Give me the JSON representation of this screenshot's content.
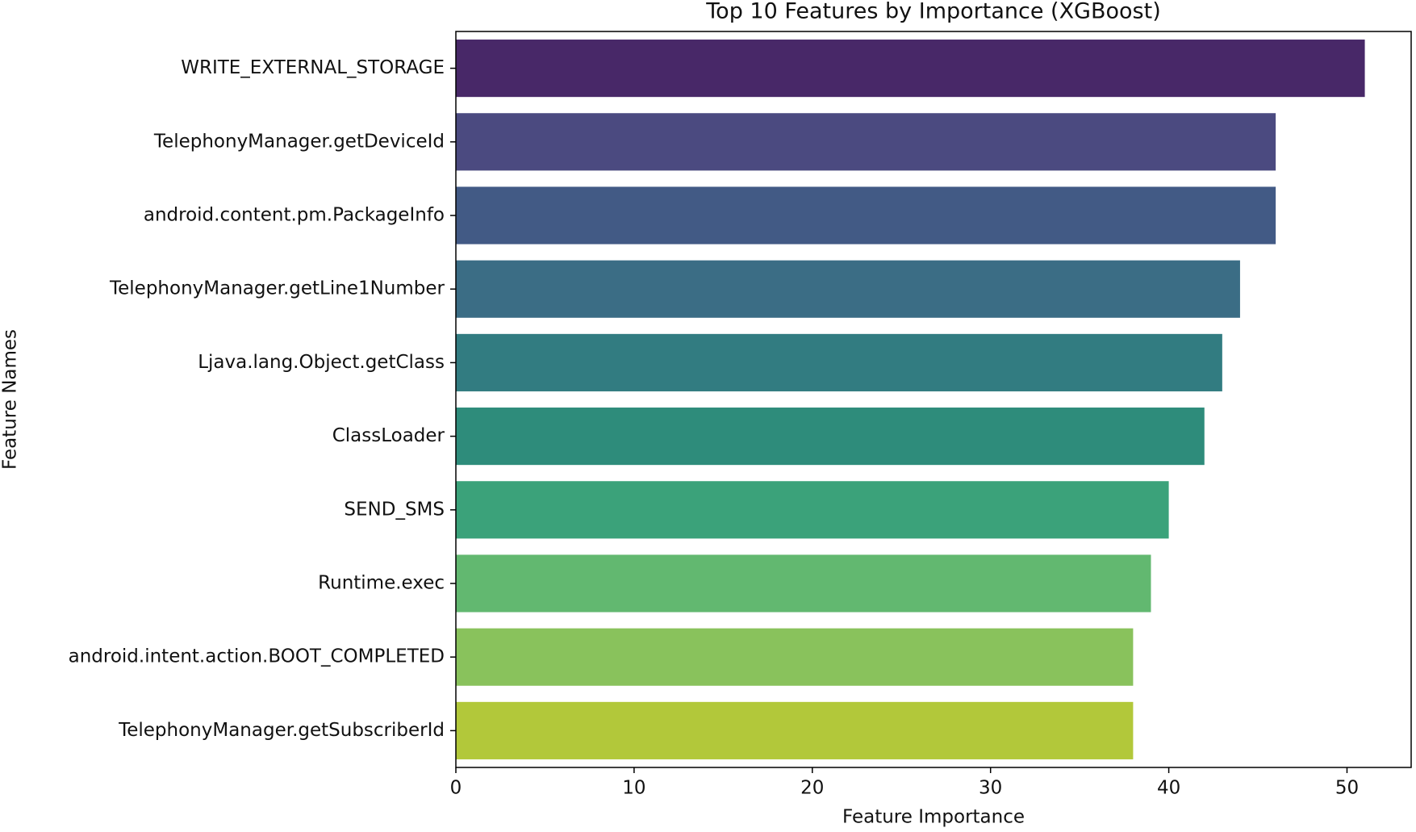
{
  "chart_data": {
    "type": "barh",
    "title": "Top 10 Features by Importance (XGBoost)",
    "xlabel": "Feature Importance",
    "ylabel": "Feature Names",
    "categories": [
      "WRITE_EXTERNAL_STORAGE",
      "TelephonyManager.getDeviceId",
      "android.content.pm.PackageInfo",
      "TelephonyManager.getLine1Number",
      "Ljava.lang.Object.getClass",
      "ClassLoader",
      "SEND_SMS",
      "Runtime.exec",
      "android.intent.action.BOOT_COMPLETED",
      "TelephonyManager.getSubscriberId"
    ],
    "values": [
      51,
      46,
      46,
      44,
      43,
      42,
      40,
      39,
      38,
      38
    ],
    "colors": [
      "#482868",
      "#4b4a80",
      "#425a85",
      "#3b6d85",
      "#327c81",
      "#2e8c7b",
      "#3ba27a",
      "#62b870",
      "#89c25c",
      "#b2c83a"
    ],
    "xlim": [
      0,
      53.6
    ],
    "xticks": [
      0,
      10,
      20,
      30,
      40,
      50
    ]
  }
}
